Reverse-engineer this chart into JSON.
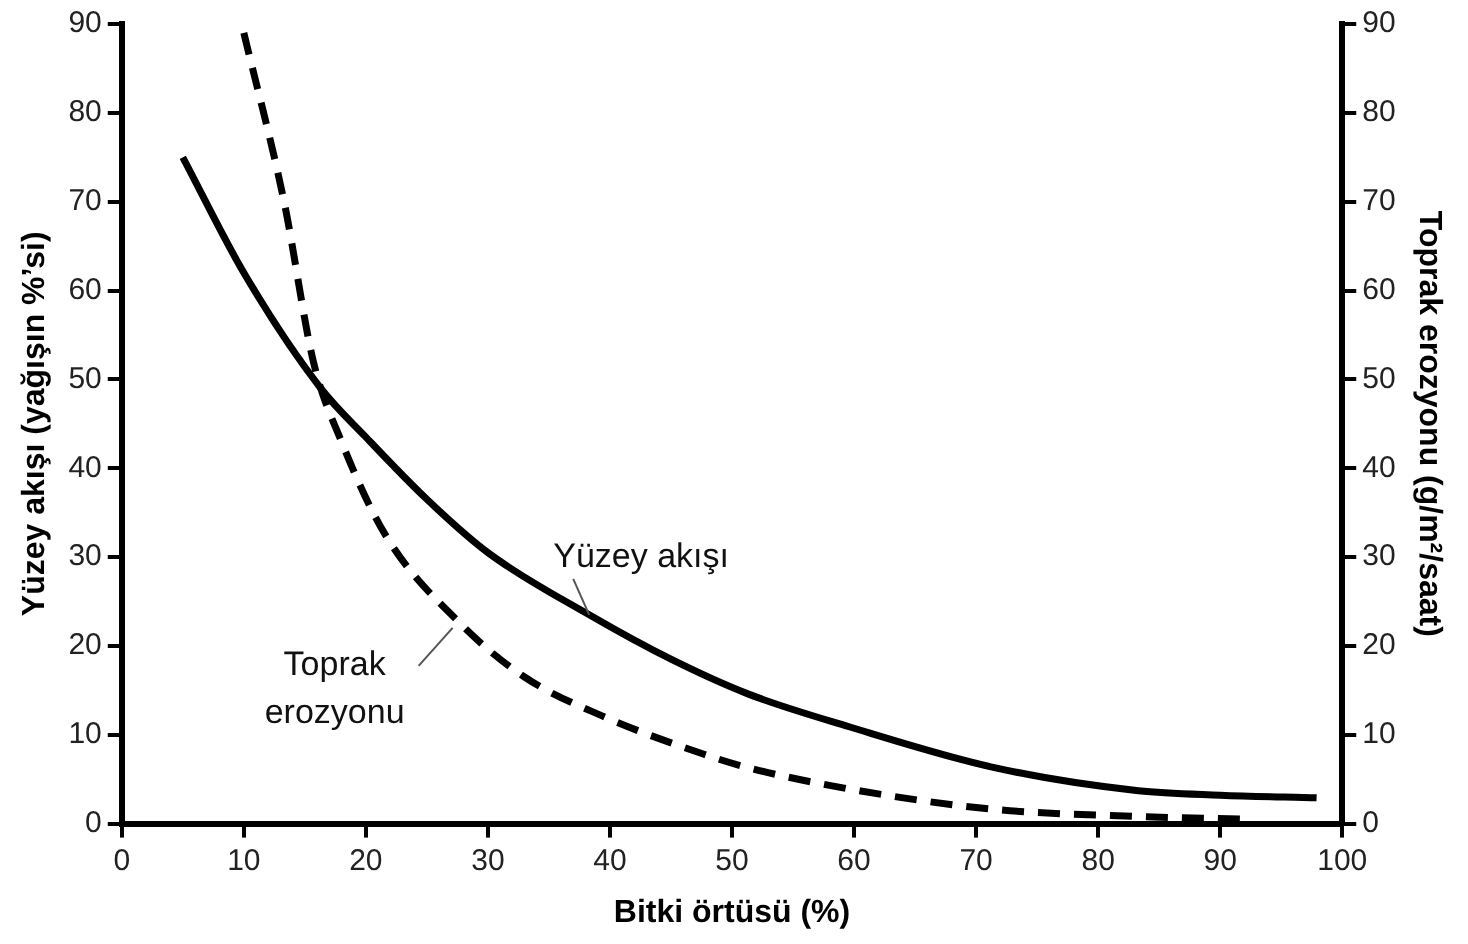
{
  "chart_data": {
    "type": "line",
    "xlabel": "Bitki örtüsü (%)",
    "ylabel": "Yüzey akışı (yağışın %’si)",
    "y2label": "Toprak erozyonu (g/m²/saat)",
    "xlim": [
      0,
      100
    ],
    "xticks": [
      0,
      10,
      20,
      30,
      40,
      50,
      60,
      70,
      80,
      90,
      100
    ],
    "ylim": [
      0,
      90
    ],
    "yticks": [
      0,
      10,
      20,
      30,
      40,
      50,
      60,
      70,
      80,
      90
    ],
    "y2lim": [
      0,
      90
    ],
    "y2ticks": [
      0,
      10,
      20,
      30,
      40,
      50,
      60,
      70,
      80,
      90
    ],
    "grid": false,
    "legend": false,
    "marker": "none",
    "series": [
      {
        "name": "Yüzey akışı",
        "color": "#000000",
        "line_style": "solid",
        "x": [
          5,
          10,
          16.3,
          20,
          25,
          30,
          38.3,
          45,
          51.3,
          59.6,
          71.5,
          83.3,
          90,
          97.9
        ],
        "values": [
          75,
          62,
          49,
          43.5,
          36.5,
          30.5,
          23.5,
          18.5,
          14.6,
          10.9,
          6.3,
          3.7,
          3.2,
          2.9
        ]
      },
      {
        "name": "Toprak erozyonu",
        "color": "#000000",
        "line_style": "dashed",
        "axis": "y2",
        "x": [
          10,
          13.3,
          15.7,
          18,
          21.6,
          27.6,
          33,
          39.4,
          47.7,
          51.3,
          59.6,
          71.5,
          83.3,
          91.9
        ],
        "values": [
          89,
          70,
          52,
          43,
          32.5,
          22.7,
          16.5,
          12.1,
          7.8,
          6.3,
          3.9,
          1.6,
          0.8,
          0.5
        ]
      }
    ]
  }
}
